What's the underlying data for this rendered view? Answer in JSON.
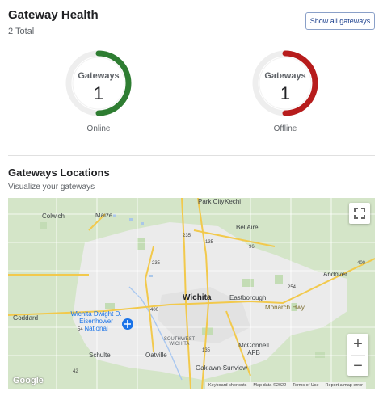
{
  "health": {
    "title": "Gateway Health",
    "total": "2 Total",
    "show_all_label": "Show all gateways",
    "gauges": [
      {
        "label": "Gateways",
        "value": "1",
        "status": "Online",
        "color": "#2e7d32"
      },
      {
        "label": "Gateways",
        "value": "1",
        "status": "Offline",
        "color": "#b71c1c"
      }
    ]
  },
  "locations": {
    "title": "Gateways Locations",
    "subtitle": "Visualize your gateways"
  },
  "map": {
    "places": {
      "park_city": "Park City",
      "kechi": "Kechi",
      "colwich": "Colwich",
      "maize": "Maize",
      "bel_aire": "Bel Aire",
      "andover": "Andover",
      "wichita": "Wichita",
      "eastborough": "Eastborough",
      "goddard": "Goddard",
      "airport": "Wichita Dwight D. Eisenhower National",
      "southwest_wichita": "SOUTHWEST WICHITA",
      "schulte": "Schulte",
      "oatville": "Oatville",
      "mcconnell": "McConnell AFB",
      "oaklawn": "Oaklawn-Sunview",
      "monarch": "Monarch Hwy"
    },
    "roads": {
      "i235a": "235",
      "i135a": "135",
      "i235b": "235",
      "i135b": "135",
      "r400a": "400",
      "r400b": "400",
      "r54": "54",
      "r96": "96",
      "r42": "42",
      "r254": "254"
    },
    "logo": "Google",
    "attribution": {
      "shortcuts": "Keyboard shortcuts",
      "data": "Map data ©2022",
      "terms": "Terms of Use",
      "report": "Report a map error"
    },
    "zoom_in": "+",
    "zoom_out": "−"
  }
}
